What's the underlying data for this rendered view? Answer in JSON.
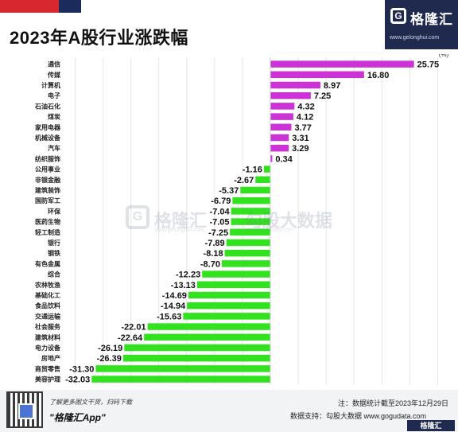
{
  "header": {
    "title": "2023年A股行业涨跌幅"
  },
  "brand": {
    "logo_letter": "G",
    "name": "格隆汇",
    "url": "www.gelonghui.com"
  },
  "watermark": {
    "brand1": "格隆汇",
    "url1": "www.gelonghui.com",
    "brand2": "勾股大数据",
    "url2": "www.gogudata.com"
  },
  "footer": {
    "scan_text": "了解更多图文干货，扫码下载",
    "app_name": "\"格隆汇App\"",
    "note": "注：数据统计截至2023年12月29日",
    "source": "数据支持：勾股大数据  www.gogudata.com",
    "badge": "格隆汇"
  },
  "colors": {
    "positive": "#cc33d6",
    "negative": "#33e21f",
    "grid": "#e4e4e4"
  },
  "chart_data": {
    "type": "bar",
    "orientation": "horizontal",
    "unit": "(%)",
    "grid": true,
    "xlim": [
      -35,
      30
    ],
    "categories": [
      "通信",
      "传媒",
      "计算机",
      "电子",
      "石油石化",
      "煤炭",
      "家用电器",
      "机械设备",
      "汽车",
      "纺织服饰",
      "公用事业",
      "非银金融",
      "建筑装饰",
      "国防军工",
      "环保",
      "医药生物",
      "轻工制造",
      "银行",
      "钢铁",
      "有色金属",
      "综合",
      "农林牧渔",
      "基础化工",
      "食品饮料",
      "交通运输",
      "社会服务",
      "建筑材料",
      "电力设备",
      "房地产",
      "商贸零售",
      "美容护理"
    ],
    "values": [
      25.75,
      16.8,
      8.97,
      7.25,
      4.32,
      4.12,
      3.77,
      3.31,
      3.29,
      0.34,
      -1.16,
      -2.67,
      -5.37,
      -6.79,
      -7.04,
      -7.05,
      -7.25,
      -7.89,
      -8.18,
      -8.7,
      -12.23,
      -13.13,
      -14.69,
      -14.94,
      -15.63,
      -22.01,
      -22.64,
      -26.19,
      -26.39,
      -31.3,
      -32.03
    ],
    "value_labels": [
      "25.75",
      "16.80",
      "8.97",
      "7.25",
      "4.32",
      "4.12",
      "3.77",
      "3.31",
      "3.29",
      "0.34",
      "-1.16",
      "-2.67",
      "-5.37",
      "-6.79",
      "-7.04",
      "-7.05",
      "-7.25",
      "-7.89",
      "-8.18",
      "-8.70",
      "-12.23",
      "-13.13",
      "-14.69",
      "-14.94",
      "-15.63",
      "-22.01",
      "-22.64",
      "-26.19",
      "-26.39",
      "-31.30",
      "-32.03"
    ]
  }
}
